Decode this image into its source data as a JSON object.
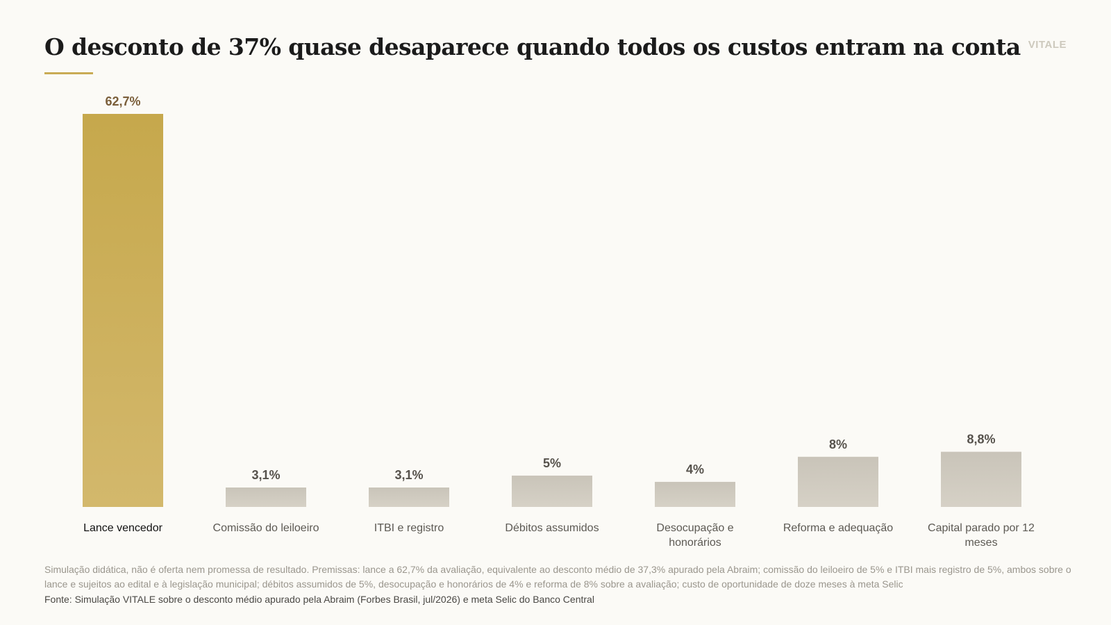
{
  "header": {
    "title": "O desconto de 37% quase desaparece quando todos os custos entram na conta",
    "brand": "VITALE"
  },
  "colors": {
    "highlight_top": "#c6a84c",
    "highlight_bottom": "#d3b86c",
    "muted_top": "#c9c4b9",
    "muted_bottom": "#d6d1c6",
    "label_highlight": "#7a5e3a",
    "label_muted": "#56524c"
  },
  "chart_data": {
    "type": "bar",
    "categories": [
      [
        "Lance vencedor"
      ],
      [
        "Comissão do leiloeiro"
      ],
      [
        "ITBI e registro"
      ],
      [
        "Débitos assumidos"
      ],
      [
        "Desocupação e",
        "honorários"
      ],
      [
        "Reforma e adequação"
      ],
      [
        "Capital parado por 12",
        "meses"
      ]
    ],
    "values": [
      62.7,
      3.1,
      3.1,
      5,
      4,
      8,
      8.8
    ],
    "value_labels": [
      "62,7%",
      "3,1%",
      "3,1%",
      "5%",
      "4%",
      "8%",
      "8,8%"
    ],
    "highlight_index": 0,
    "ylim": [
      0,
      62.7
    ],
    "grid": false,
    "legend": "none"
  },
  "footer": {
    "notes": "Simulação didática, não é oferta nem promessa de resultado. Premissas: lance a 62,7% da avaliação, equivalente ao desconto médio de 37,3% apurado pela Abraim; comissão do leiloeiro de 5% e ITBI mais registro de 5%, ambos sobre o lance e sujeitos ao edital e à legislação municipal; débitos assumidos de 5%, desocupação e honorários de 4% e reforma de 8% sobre a avaliação; custo de oportunidade de doze meses à meta Selic",
    "source": "Fonte: Simulação VITALE sobre o desconto médio apurado pela Abraim (Forbes Brasil, jul/2026) e meta Selic do Banco Central"
  }
}
